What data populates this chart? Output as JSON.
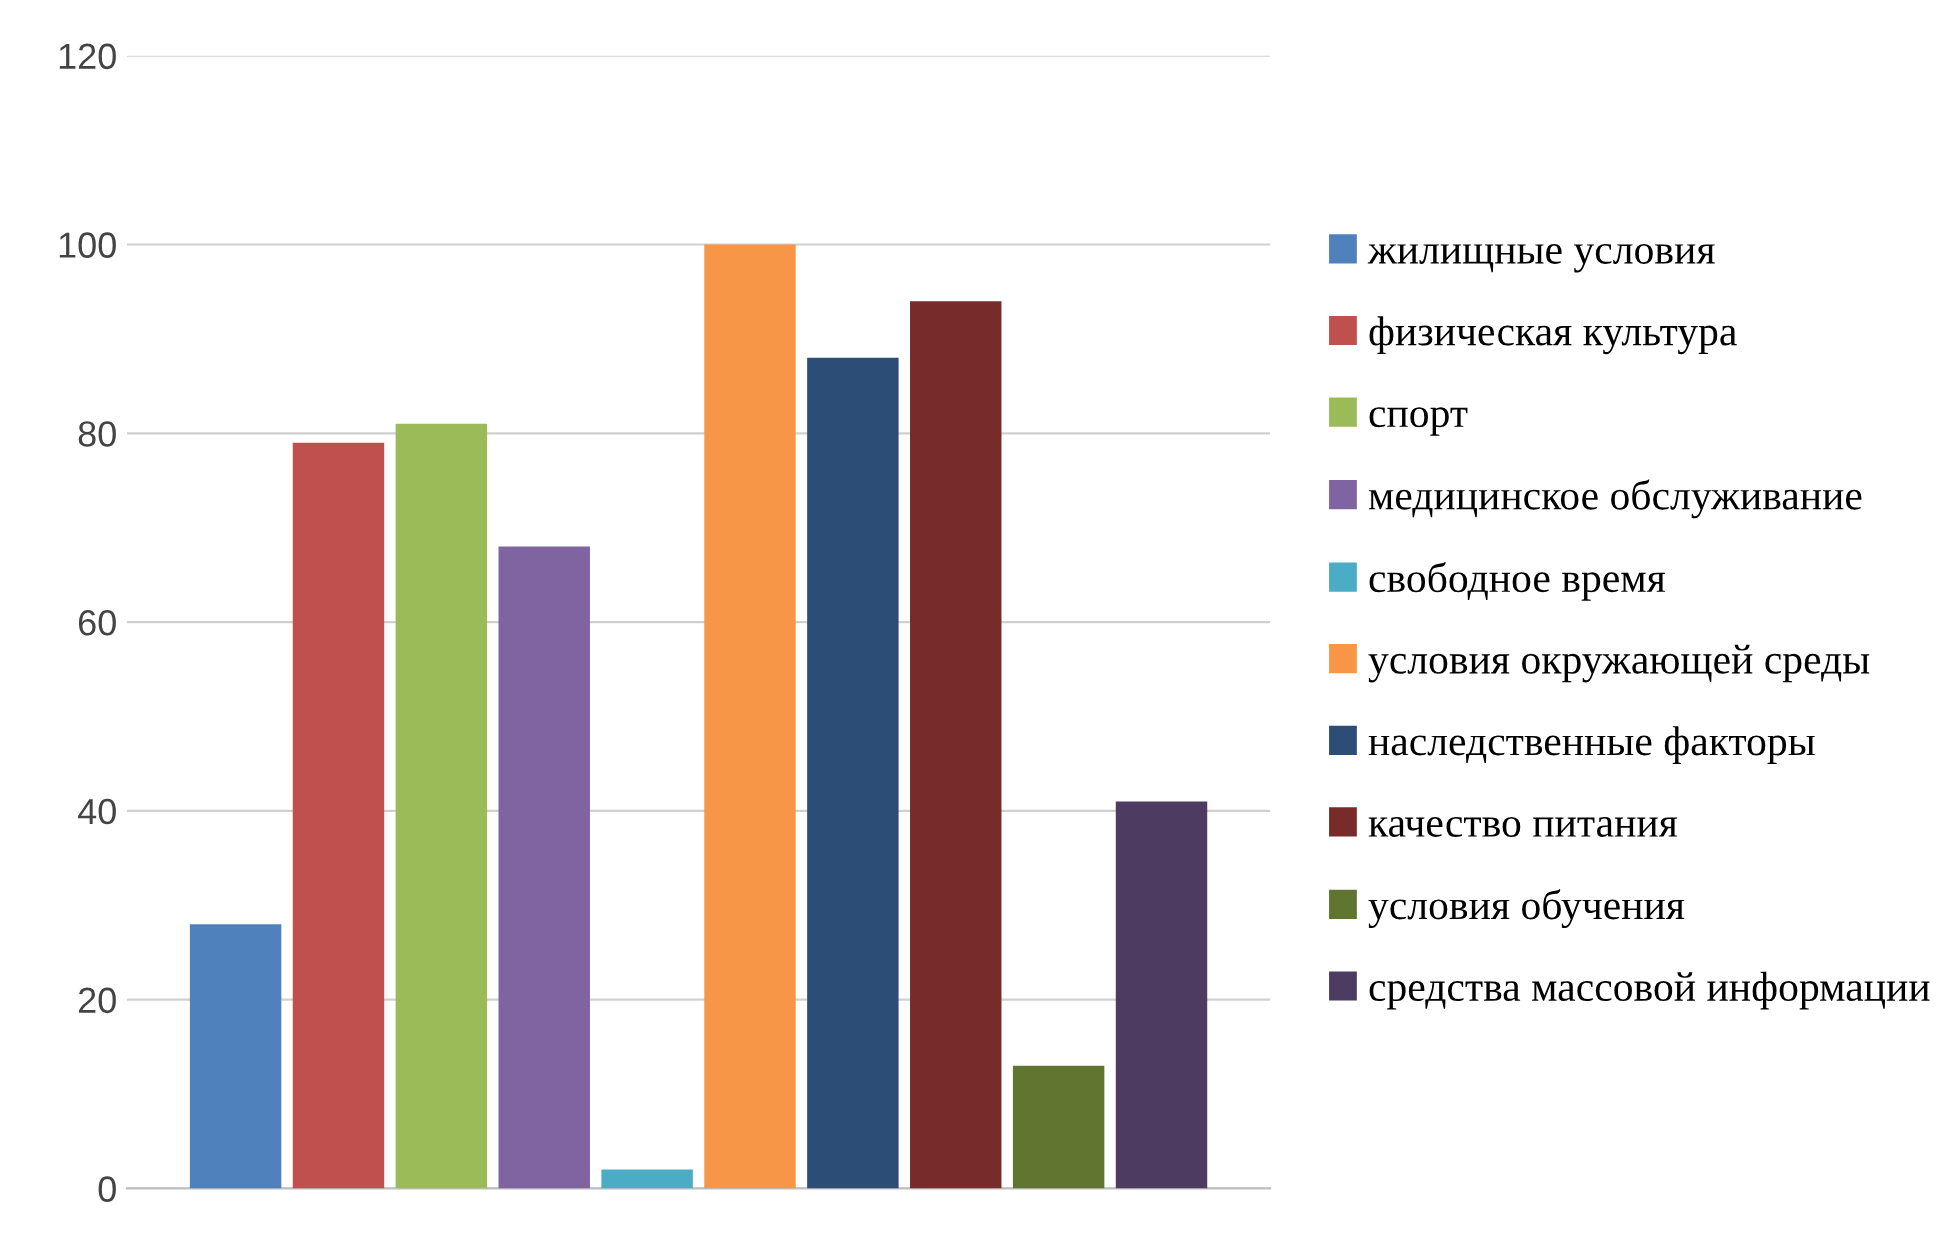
{
  "chart_data": {
    "type": "bar",
    "categories": [
      null
    ],
    "series": [
      {
        "name": "жилищные условия",
        "color": "#4f81bd",
        "values": [
          28
        ]
      },
      {
        "name": "физическая культура",
        "color": "#c0504d",
        "values": [
          79
        ]
      },
      {
        "name": "спорт",
        "color": "#9bbb59",
        "values": [
          81
        ]
      },
      {
        "name": "медицинское обслуживание",
        "color": "#8064a2",
        "values": [
          68
        ]
      },
      {
        "name": "свободное время",
        "color": "#4bacc6",
        "values": [
          2
        ]
      },
      {
        "name": "условия окружающей среды",
        "color": "#f79646",
        "values": [
          100
        ]
      },
      {
        "name": "наследственные факторы",
        "color": "#2c4d75",
        "values": [
          88
        ]
      },
      {
        "name": "качество питания",
        "color": "#772c2a",
        "values": [
          94
        ]
      },
      {
        "name": "условия обучения",
        "color": "#5f7530",
        "values": [
          13
        ]
      },
      {
        "name": "средства массовой информации",
        "color": "#4d3b62",
        "values": [
          41
        ]
      }
    ],
    "ylim": [
      0,
      120
    ],
    "yticks": [
      0,
      20,
      40,
      60,
      80,
      100,
      120
    ],
    "grid": "y",
    "legend": "right"
  }
}
